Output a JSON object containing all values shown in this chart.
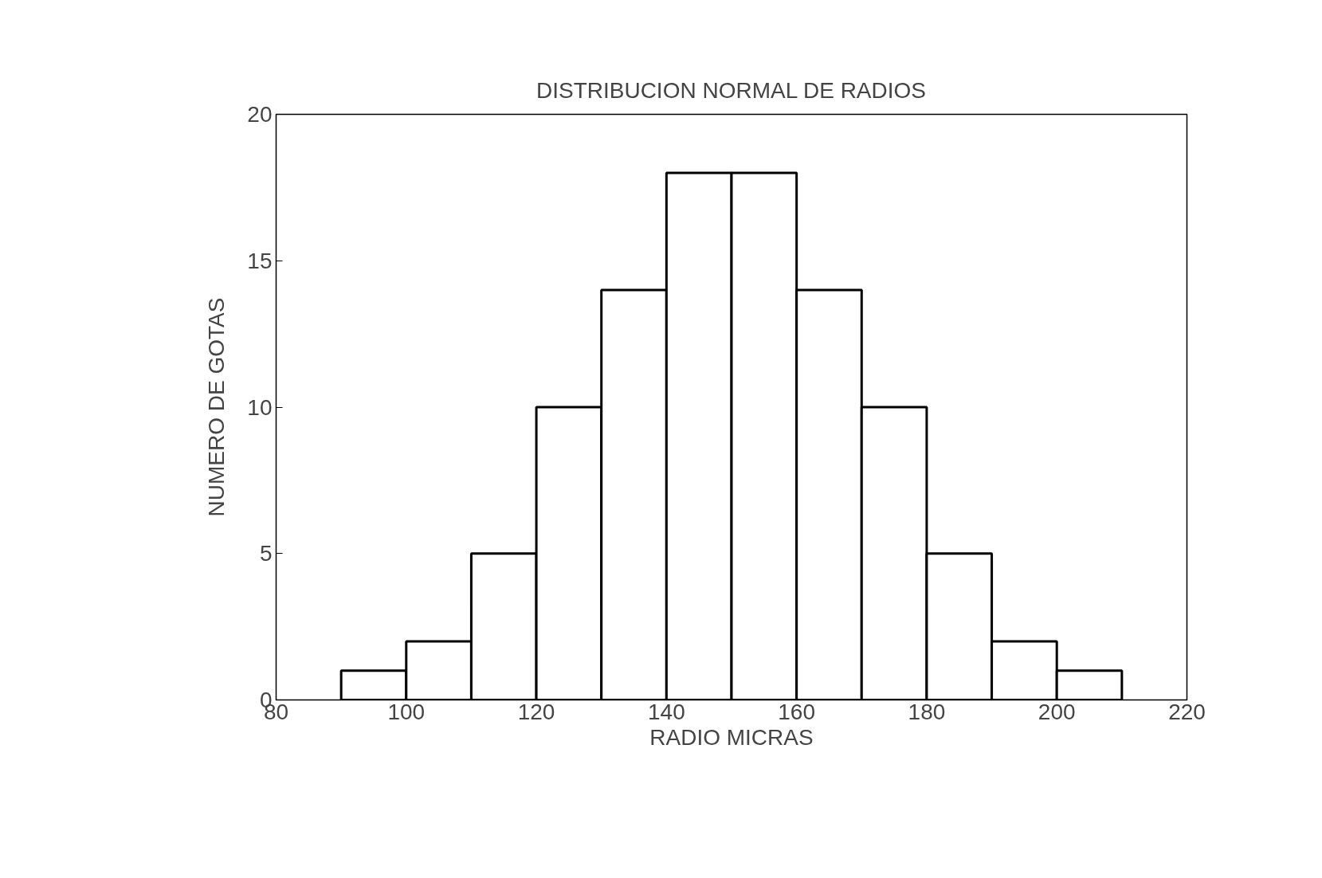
{
  "chart_data": {
    "type": "histogram",
    "title": "DISTRIBUCION NORMAL DE RADIOS",
    "xlabel": "RADIO MICRAS",
    "ylabel": "NUMERO DE GOTAS",
    "bins": [
      90,
      100,
      110,
      120,
      130,
      140,
      150,
      160,
      170,
      180,
      190,
      200,
      210
    ],
    "values": [
      1,
      2,
      5,
      10,
      14,
      18,
      18,
      14,
      10,
      5,
      2,
      1
    ],
    "color": "#ffffff",
    "xlim": [
      80,
      220
    ],
    "xticks": [
      80,
      100,
      120,
      140,
      160,
      180,
      200,
      220
    ],
    "ylim": [
      0,
      20
    ],
    "yticks": [
      0,
      5,
      10,
      15,
      20
    ]
  }
}
